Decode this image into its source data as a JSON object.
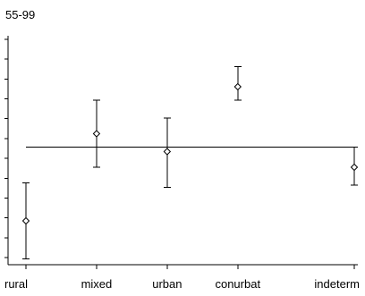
{
  "chart_data": {
    "type": "scatter",
    "title": "55-99",
    "categories": [
      "rural",
      "mixed",
      "urban",
      "conurbat",
      "indeterm"
    ],
    "x": [
      0,
      2,
      4,
      6,
      9.3
    ],
    "points": [
      {
        "category": "rural",
        "value": 1.8,
        "low": 0.1,
        "high": 3.5
      },
      {
        "category": "mixed",
        "value": 5.7,
        "low": 4.2,
        "high": 7.2
      },
      {
        "category": "urban",
        "value": 4.9,
        "low": 3.3,
        "high": 6.4
      },
      {
        "category": "conurbat",
        "value": 7.8,
        "low": 7.2,
        "high": 8.7
      },
      {
        "category": "indeterm",
        "value": 4.2,
        "low": 3.4,
        "high": 5.1
      }
    ],
    "reference_y": 5.1,
    "xlim": [
      -0.4,
      9.3
    ],
    "ylim": [
      -0.1,
      10.2
    ],
    "y_tick_count": 12,
    "grid": false,
    "legend": "none"
  }
}
